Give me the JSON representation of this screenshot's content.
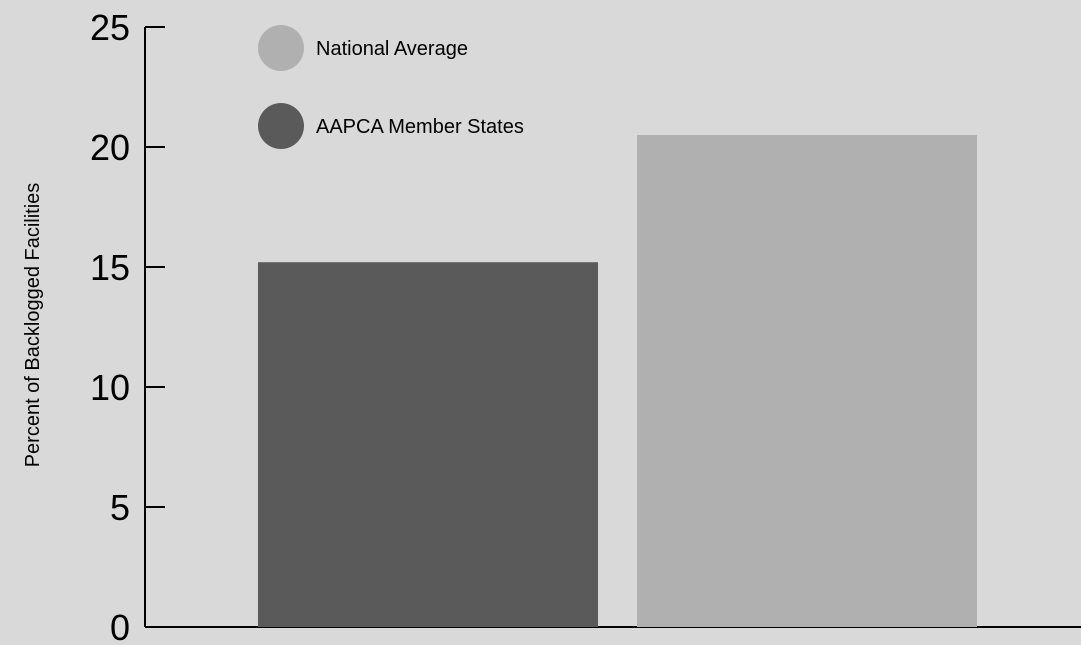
{
  "chart_data": {
    "type": "bar",
    "title": "",
    "xlabel": "",
    "ylabel": "Percent of Backlogged Facilities",
    "ylim": [
      0,
      25
    ],
    "yticks": [
      0,
      5,
      10,
      15,
      20,
      25
    ],
    "grid": false,
    "legend_position": "top-left",
    "series": [
      {
        "name": "AAPCA Member States",
        "values": [
          15.2
        ],
        "color": "#5a5a5a"
      },
      {
        "name": "National Average",
        "values": [
          20.5
        ],
        "color": "#b0b0b0"
      }
    ]
  },
  "colors": {
    "background": "#d9d9d9",
    "axis": "#000000"
  }
}
